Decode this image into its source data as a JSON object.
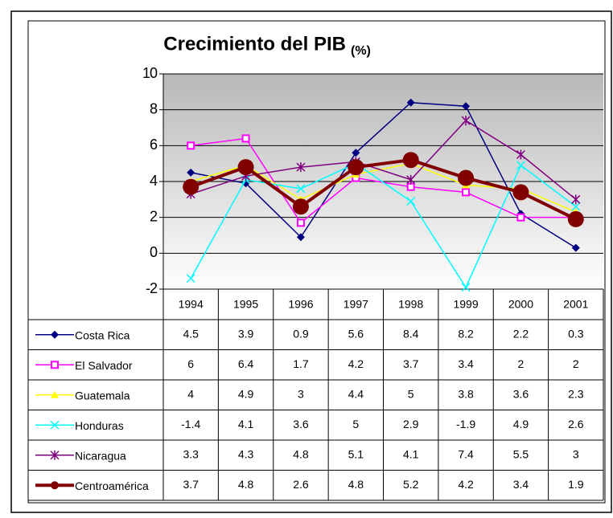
{
  "chart_data": {
    "type": "line",
    "title": "Crecimiento del PIB",
    "title_unit": "(%)",
    "categories": [
      "1994",
      "1995",
      "1996",
      "1997",
      "1998",
      "1999",
      "2000",
      "2001"
    ],
    "ylim": [
      -2,
      10
    ],
    "yticks": [
      -2,
      0,
      2,
      4,
      6,
      8,
      10
    ],
    "grid": true,
    "series": [
      {
        "name": "Costa Rica",
        "color": "#000080",
        "marker": "diamond",
        "values": [
          4.5,
          3.9,
          0.9,
          5.6,
          8.4,
          8.2,
          2.2,
          0.3
        ]
      },
      {
        "name": "El Salvador",
        "color": "#ff00ff",
        "marker": "square",
        "values": [
          6,
          6.4,
          1.7,
          4.2,
          3.7,
          3.4,
          2,
          2
        ]
      },
      {
        "name": "Guatemala",
        "color": "#ffff00",
        "marker": "triangle",
        "values": [
          4,
          4.9,
          3,
          4.4,
          5,
          3.8,
          3.6,
          2.3
        ]
      },
      {
        "name": "Honduras",
        "color": "#00ffff",
        "marker": "x",
        "values": [
          -1.4,
          4.1,
          3.6,
          5,
          2.9,
          -1.9,
          4.9,
          2.6
        ]
      },
      {
        "name": "Nicaragua",
        "color": "#800080",
        "marker": "star",
        "values": [
          3.3,
          4.3,
          4.8,
          5.1,
          4.1,
          7.4,
          5.5,
          3
        ]
      },
      {
        "name": "Centroamérica",
        "color": "#800000",
        "marker": "circle",
        "values": [
          3.7,
          4.8,
          2.6,
          4.8,
          5.2,
          4.2,
          3.4,
          1.9
        ]
      }
    ]
  }
}
